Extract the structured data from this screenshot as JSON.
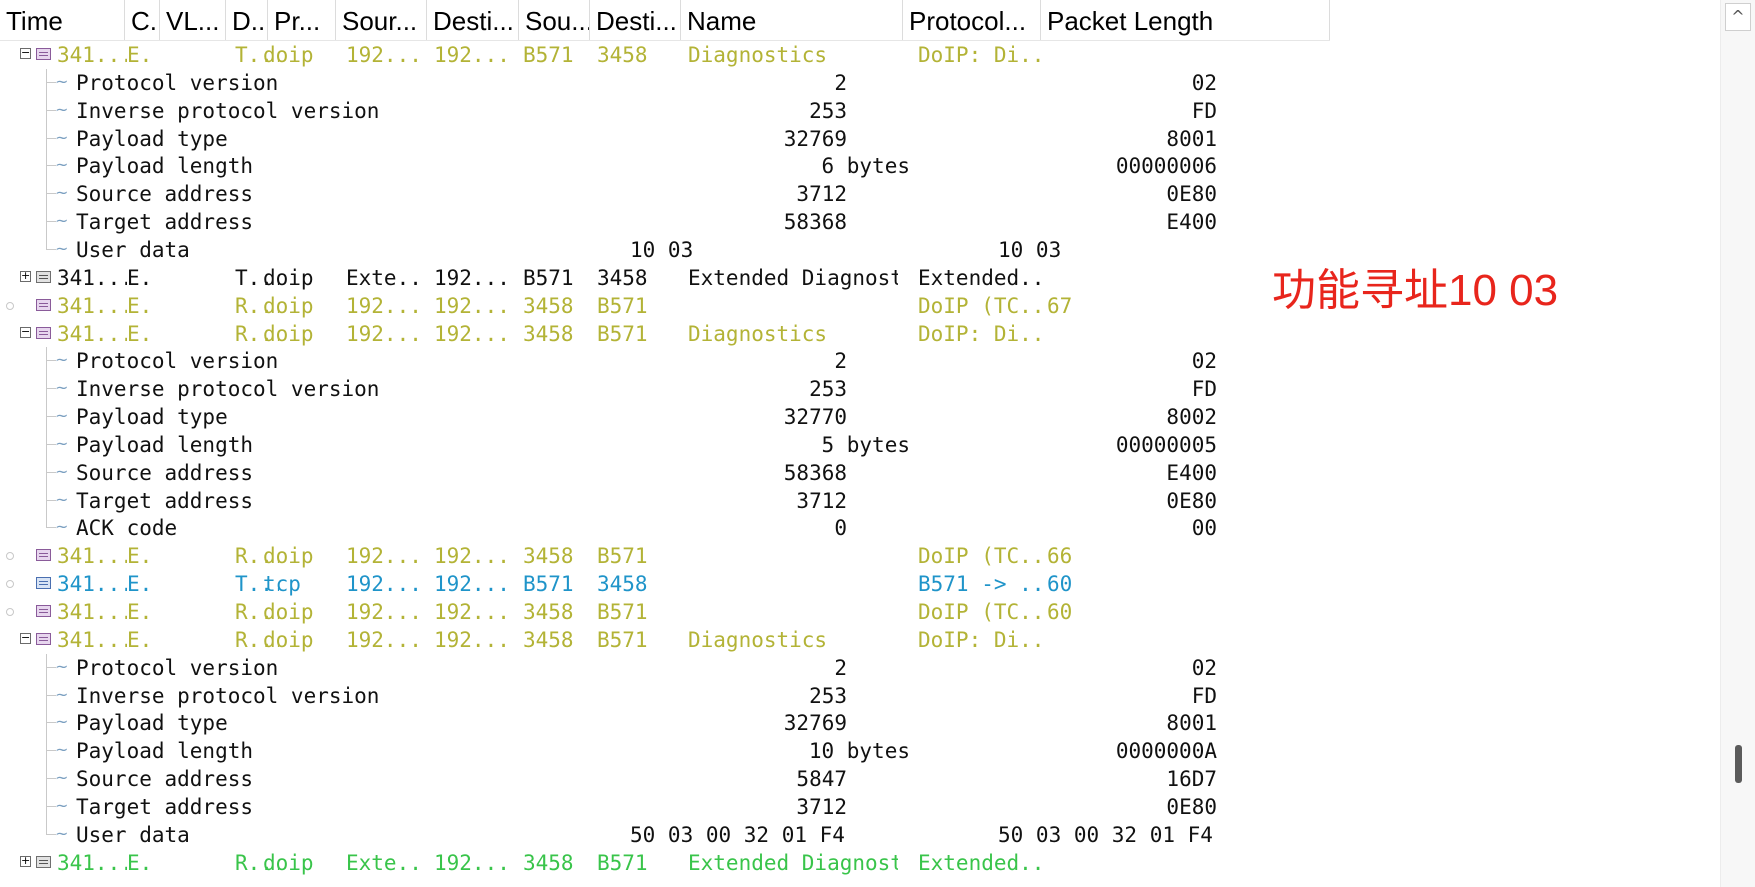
{
  "columns": [
    "Time",
    "C..",
    "VL...",
    "D..",
    "Pr...",
    "Sour...",
    "Desti...",
    "Sou...",
    "Desti...",
    "Name",
    "Protocol...",
    "Packet Length"
  ],
  "rows": [
    {
      "kind": "pkt",
      "color": "olive",
      "expand": "minus",
      "icon": "olive",
      "cells": {
        "time": "341...",
        "ch": "E..",
        "dir": "T...",
        "proto": "doip",
        "src": "192....",
        "dst": "192....",
        "sport": "B571",
        "dport": "3458",
        "name": "Diagnostics",
        "summary": "DoIP: Di...",
        "len": ""
      }
    },
    {
      "kind": "field",
      "label": "Protocol version",
      "value": "2",
      "raw": "02"
    },
    {
      "kind": "field",
      "label": "Inverse protocol version",
      "value": "253",
      "raw": "FD"
    },
    {
      "kind": "field",
      "label": "Payload type",
      "value": "32769",
      "raw": "8001"
    },
    {
      "kind": "field",
      "label": "Payload length",
      "value": "6 bytes",
      "raw": "00000006"
    },
    {
      "kind": "field",
      "label": "Source address",
      "value": "3712",
      "raw": "0E80"
    },
    {
      "kind": "field",
      "label": "Target address",
      "value": "58368",
      "raw": "E400"
    },
    {
      "kind": "userdata",
      "label": "User data",
      "value": "10 03",
      "raw": "10 03",
      "last": true
    },
    {
      "kind": "pkt",
      "color": "black",
      "expand": "plus",
      "icon": "grid",
      "cells": {
        "time": "341...",
        "ch": "E..",
        "dir": "T...",
        "proto": "doip",
        "src": "Exte...",
        "dst": "192....",
        "sport": "B571",
        "dport": "3458",
        "name": "Extended Diagnost...",
        "summary": "Extended...",
        "len": ""
      }
    },
    {
      "kind": "pkt",
      "color": "olive",
      "expand": "dot",
      "icon": "olive",
      "cells": {
        "time": "341...",
        "ch": "E..",
        "dir": "R...",
        "proto": "doip",
        "src": "192....",
        "dst": "192....",
        "sport": "3458",
        "dport": "B571",
        "name": "",
        "summary": "DoIP (TC...",
        "len": "67"
      }
    },
    {
      "kind": "pkt",
      "color": "olive",
      "expand": "minus",
      "icon": "olive",
      "cells": {
        "time": "341...",
        "ch": "E..",
        "dir": "R...",
        "proto": "doip",
        "src": "192....",
        "dst": "192....",
        "sport": "3458",
        "dport": "B571",
        "name": "Diagnostics",
        "summary": "DoIP: Di...",
        "len": ""
      }
    },
    {
      "kind": "field",
      "label": "Protocol version",
      "value": "2",
      "raw": "02"
    },
    {
      "kind": "field",
      "label": "Inverse protocol version",
      "value": "253",
      "raw": "FD"
    },
    {
      "kind": "field",
      "label": "Payload type",
      "value": "32770",
      "raw": "8002"
    },
    {
      "kind": "field",
      "label": "Payload length",
      "value": "5 bytes",
      "raw": "00000005"
    },
    {
      "kind": "field",
      "label": "Source address",
      "value": "58368",
      "raw": "E400"
    },
    {
      "kind": "field",
      "label": "Target address",
      "value": "3712",
      "raw": "0E80"
    },
    {
      "kind": "field",
      "label": "ACK code",
      "value": "0",
      "raw": "00",
      "last": true
    },
    {
      "kind": "pkt",
      "color": "olive",
      "expand": "dot",
      "icon": "olive",
      "cells": {
        "time": "341...",
        "ch": "E..",
        "dir": "R...",
        "proto": "doip",
        "src": "192....",
        "dst": "192....",
        "sport": "3458",
        "dport": "B571",
        "name": "",
        "summary": "DoIP (TC...",
        "len": "66"
      }
    },
    {
      "kind": "pkt",
      "color": "blue",
      "expand": "dot",
      "icon": "blue",
      "cells": {
        "time": "341...",
        "ch": "E..",
        "dir": "T...",
        "proto": "tcp",
        "src": "192....",
        "dst": "192....",
        "sport": "B571",
        "dport": "3458",
        "name": "",
        "summary": "B571 -> ...",
        "len": "60"
      }
    },
    {
      "kind": "pkt",
      "color": "olive",
      "expand": "dot",
      "icon": "olive",
      "cells": {
        "time": "341...",
        "ch": "E..",
        "dir": "R...",
        "proto": "doip",
        "src": "192....",
        "dst": "192....",
        "sport": "3458",
        "dport": "B571",
        "name": "",
        "summary": "DoIP (TC...",
        "len": "60"
      }
    },
    {
      "kind": "pkt",
      "color": "olive",
      "expand": "minus",
      "icon": "olive",
      "cells": {
        "time": "341...",
        "ch": "E..",
        "dir": "R...",
        "proto": "doip",
        "src": "192....",
        "dst": "192....",
        "sport": "3458",
        "dport": "B571",
        "name": "Diagnostics",
        "summary": "DoIP: Di...",
        "len": ""
      }
    },
    {
      "kind": "field",
      "label": "Protocol version",
      "value": "2",
      "raw": "02"
    },
    {
      "kind": "field",
      "label": "Inverse protocol version",
      "value": "253",
      "raw": "FD"
    },
    {
      "kind": "field",
      "label": "Payload type",
      "value": "32769",
      "raw": "8001"
    },
    {
      "kind": "field",
      "label": "Payload length",
      "value": "10 bytes",
      "raw": "0000000A"
    },
    {
      "kind": "field",
      "label": "Source address",
      "value": "5847",
      "raw": "16D7"
    },
    {
      "kind": "field",
      "label": "Target address",
      "value": "3712",
      "raw": "0E80"
    },
    {
      "kind": "userdata",
      "label": "User data",
      "value": "50 03 00 32 01 F4",
      "raw": "50 03 00 32 01 F4",
      "last": true
    },
    {
      "kind": "pkt",
      "color": "green",
      "expand": "plus",
      "icon": "grid",
      "cells": {
        "time": "341...",
        "ch": "E..",
        "dir": "R...",
        "proto": "doip",
        "src": "Exte...",
        "dst": "192....",
        "sport": "3458",
        "dport": "B571",
        "name": "Extended Diagnost...",
        "summary": "Extended...",
        "len": ""
      }
    }
  ],
  "annotation": "功能寻址10 03",
  "scrollbar": {
    "up_arrow": "^"
  },
  "colors": {
    "olive": "#b3b336",
    "green": "#39c44a",
    "blue": "#1f94c9",
    "annotation": "#e8251c"
  }
}
